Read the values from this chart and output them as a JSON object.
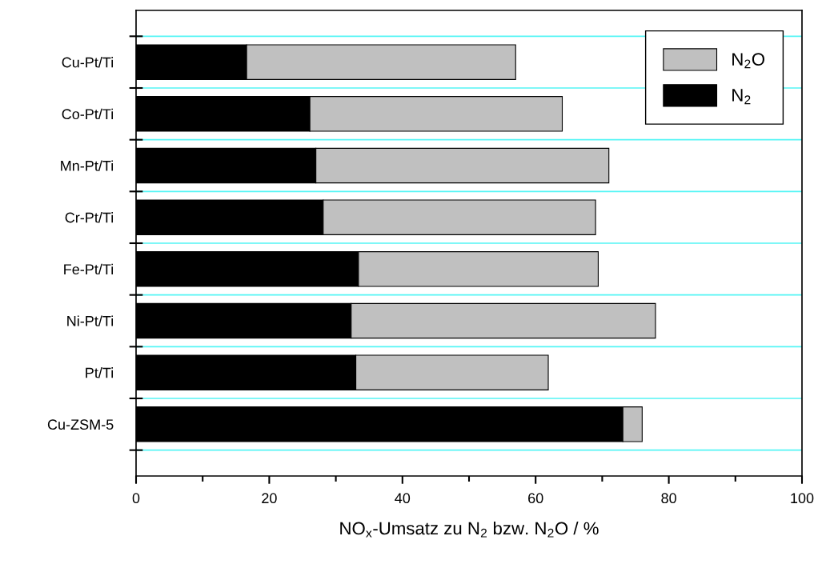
{
  "chart_data": {
    "type": "bar",
    "orientation": "horizontal",
    "stacked": true,
    "categories": [
      "Cu-Pt/Ti",
      "Co-Pt/Ti",
      "Mn-Pt/Ti",
      "Cr-Pt/Ti",
      "Fe-Pt/Ti",
      "Ni-Pt/Ti",
      "Pt/Ti",
      "Cu-ZSM-5"
    ],
    "series": [
      {
        "name": "N$_{2}$",
        "color": "#000000",
        "values": [
          16.6,
          26.1,
          27.0,
          28.1,
          33.4,
          32.3,
          33.0,
          73.1
        ]
      },
      {
        "name": "N$_{2}$O",
        "color": "#c0c0c0",
        "values": [
          40.4,
          37.9,
          44.0,
          40.9,
          36.0,
          45.7,
          28.9,
          2.9
        ]
      }
    ],
    "xlabel": "NO$_{x}$-Umsatz zu N$_{2}$ bzw. N$_{2}$O / %",
    "xlim": [
      0,
      100
    ],
    "xticks": [
      0,
      20,
      40,
      60,
      80,
      100
    ],
    "grid": "y",
    "legend": "top right"
  }
}
